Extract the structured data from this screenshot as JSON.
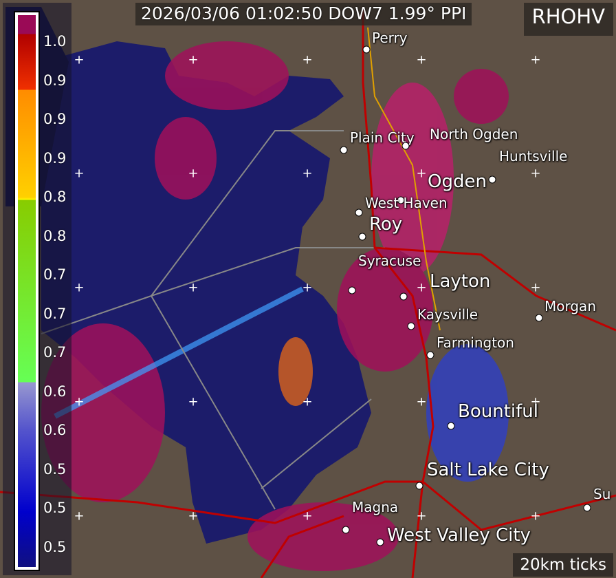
{
  "header": {
    "title": "2026/03/06 01:02:50 DOW7 1.99° PPI",
    "product": "RHOHV"
  },
  "scale_note": "20km ticks",
  "colorbar": {
    "labels": [
      "1.0",
      "0.9",
      "0.9",
      "0.9",
      "0.8",
      "0.8",
      "0.7",
      "0.7",
      "0.7",
      "0.6",
      "0.6",
      "0.5",
      "0.5",
      "0.5"
    ]
  },
  "cities": [
    {
      "name": "Perry",
      "big": false
    },
    {
      "name": "Plain City",
      "big": false
    },
    {
      "name": "North Ogden",
      "big": false
    },
    {
      "name": "Huntsville",
      "big": false
    },
    {
      "name": "Ogden",
      "big": true
    },
    {
      "name": "West Haven",
      "big": false
    },
    {
      "name": "Roy",
      "big": true
    },
    {
      "name": "Syracuse",
      "big": false
    },
    {
      "name": "Layton",
      "big": true
    },
    {
      "name": "Kaysville",
      "big": false
    },
    {
      "name": "Farmington",
      "big": false
    },
    {
      "name": "Morgan",
      "big": false
    },
    {
      "name": "Bountiful",
      "big": true
    },
    {
      "name": "Salt Lake City",
      "big": true
    },
    {
      "name": "Magna",
      "big": false
    },
    {
      "name": "West Valley City",
      "big": true
    },
    {
      "name": "Su",
      "big": false
    }
  ],
  "colors": {
    "land": "#5e5145",
    "lake": "#1c1c6a",
    "echo": "#a0105a",
    "road": "#c00000",
    "highway": "#e0a000"
  }
}
